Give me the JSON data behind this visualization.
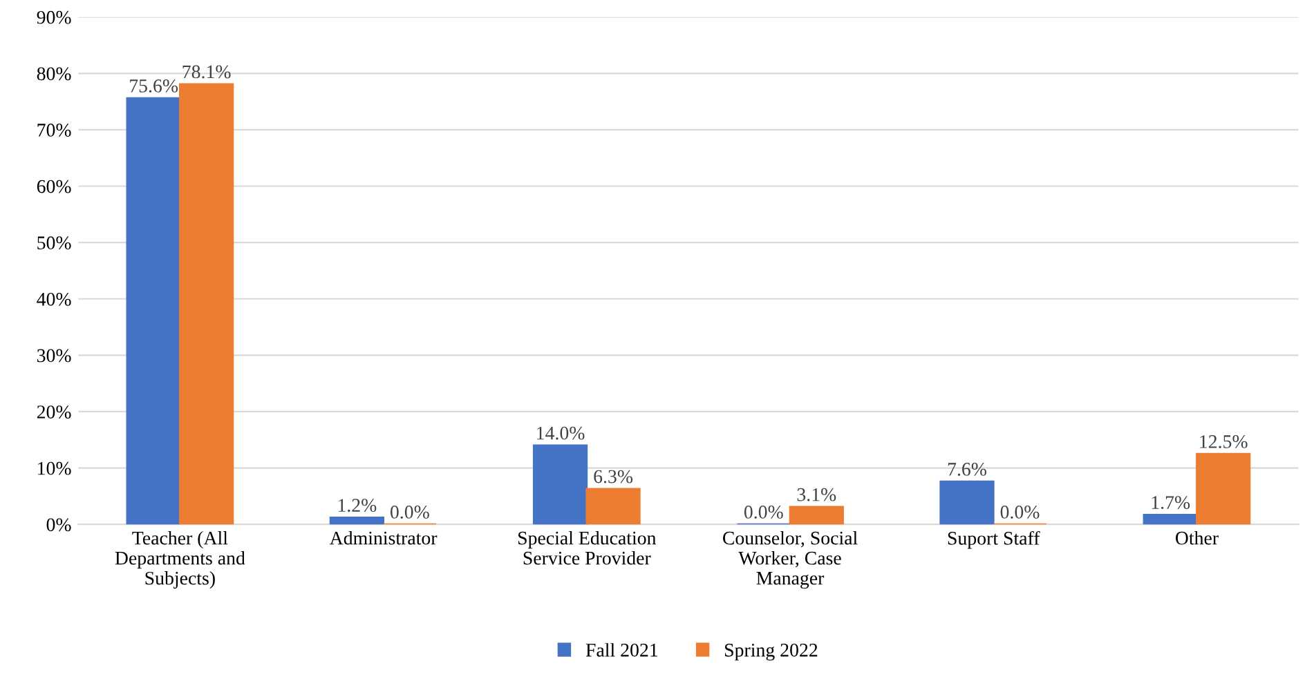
{
  "chart_data": {
    "type": "bar",
    "categories": [
      "Teacher (All\nDepartments and\nSubjects)",
      "Administrator",
      "Special Education\nService Provider",
      "Counselor, Social\nWorker, Case\nManager",
      "Suport Staff",
      "Other"
    ],
    "series": [
      {
        "name": "Fall 2021",
        "color": "#4472c4",
        "values": [
          75.6,
          1.2,
          14.0,
          0.0,
          7.6,
          1.7
        ],
        "value_labels": [
          "75.6%",
          "1.2%",
          "14.0%",
          "0.0%",
          "7.6%",
          "1.7%"
        ]
      },
      {
        "name": "Spring 2022",
        "color": "#ed7d31",
        "values": [
          78.1,
          0.0,
          6.3,
          3.1,
          0.0,
          12.5
        ],
        "value_labels": [
          "78.1%",
          "0.0%",
          "6.3%",
          "3.1%",
          "0.0%",
          "12.5%"
        ]
      }
    ],
    "ylim": [
      0,
      90
    ],
    "yticks": [
      {
        "value": 0,
        "label": "0%"
      },
      {
        "value": 10,
        "label": "10%"
      },
      {
        "value": 20,
        "label": "20%"
      },
      {
        "value": 30,
        "label": "30%"
      },
      {
        "value": 40,
        "label": "40%"
      },
      {
        "value": 50,
        "label": "50%"
      },
      {
        "value": 60,
        "label": "60%"
      },
      {
        "value": 70,
        "label": "70%"
      },
      {
        "value": 80,
        "label": "80%"
      },
      {
        "value": 90,
        "label": "90%"
      }
    ],
    "grid": "y",
    "legend": "bottom"
  }
}
